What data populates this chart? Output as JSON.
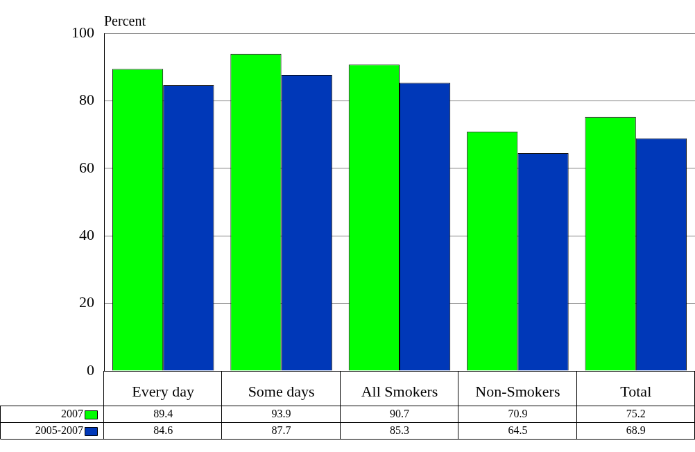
{
  "chart_data": {
    "type": "bar",
    "ylabel": "Percent",
    "categories": [
      "Every day",
      "Some days",
      "All Smokers",
      "Non-Smokers",
      "Total"
    ],
    "series": [
      {
        "name": "2007",
        "color": "#00ff00",
        "values": [
          89.4,
          93.9,
          90.7,
          70.9,
          75.2
        ]
      },
      {
        "name": "2005-2007",
        "color": "#0038b8",
        "values": [
          84.6,
          87.7,
          85.3,
          64.5,
          68.9
        ]
      }
    ],
    "ylim": [
      0,
      100
    ],
    "yticks": [
      0,
      20,
      40,
      60,
      80,
      100
    ],
    "grid": "y",
    "legend": "bottom",
    "data_labels": true
  }
}
